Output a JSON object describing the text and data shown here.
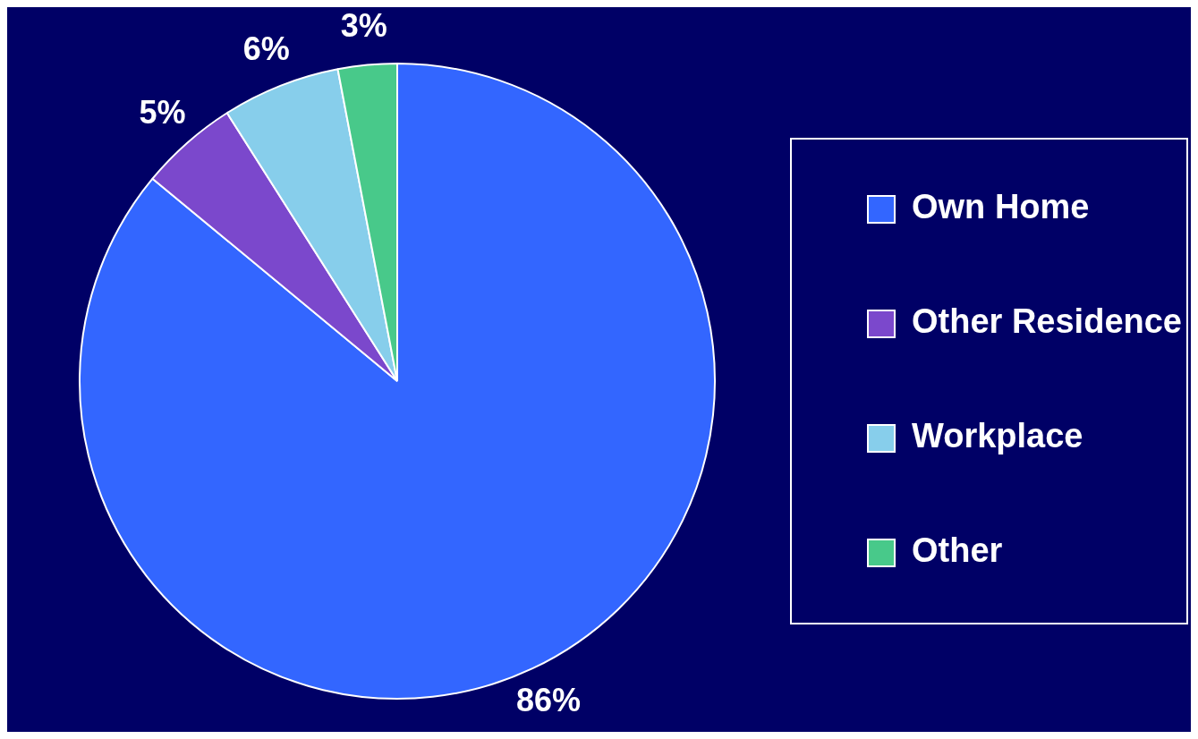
{
  "chart_data": {
    "type": "pie",
    "categories": [
      "Own Home",
      "Other Residence",
      "Workplace",
      "Other"
    ],
    "values": [
      86,
      5,
      6,
      3
    ],
    "colors": [
      "#3366ff",
      "#7b48cc",
      "#87ceeb",
      "#48c98a"
    ],
    "value_labels": [
      "86%",
      "5%",
      "6%",
      "3%"
    ],
    "legend": "right"
  }
}
